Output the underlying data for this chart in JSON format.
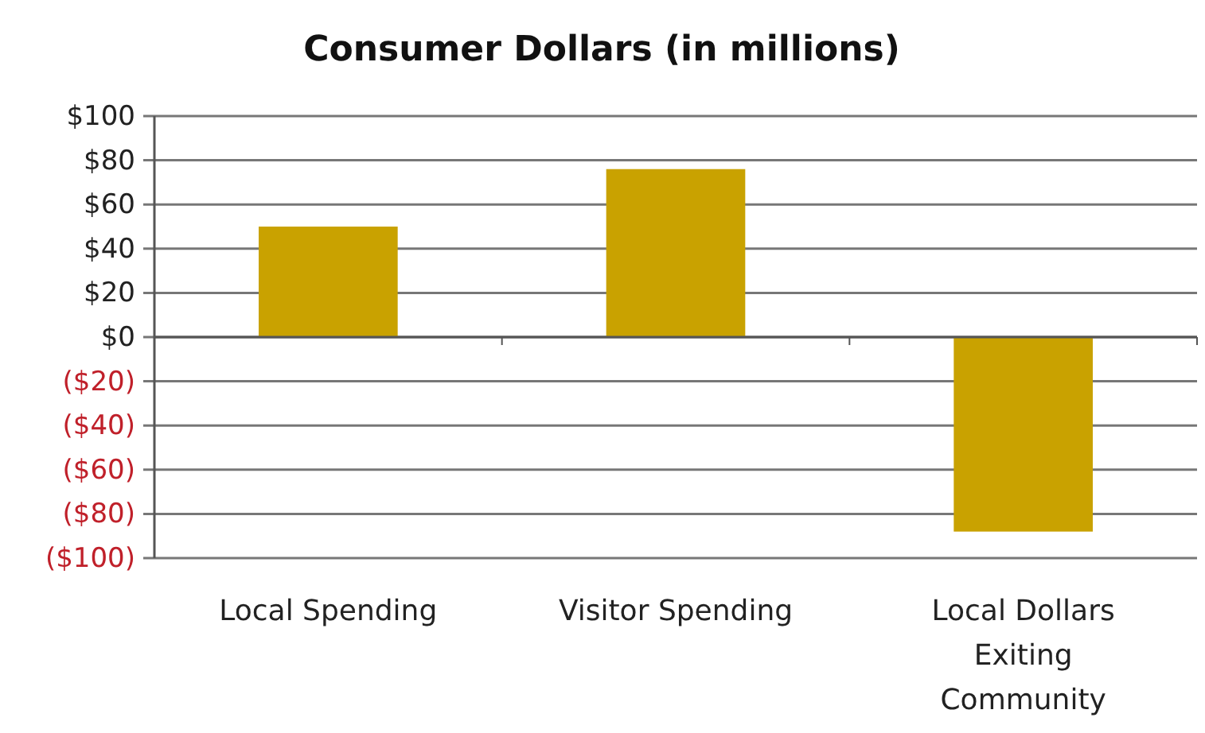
{
  "chart_data": {
    "type": "bar",
    "title": "Consumer Dollars (in millions)",
    "categories": [
      "Local Spending",
      "Visitor Spending",
      "Local Dollars Exiting Community"
    ],
    "values": [
      50,
      76,
      -88
    ],
    "color": "#c9a200",
    "ylim": [
      -100,
      100
    ],
    "yticks": [
      {
        "value": -100,
        "label": "($100)"
      },
      {
        "value": -80,
        "label": "($80)"
      },
      {
        "value": -60,
        "label": "($60)"
      },
      {
        "value": -40,
        "label": "($40)"
      },
      {
        "value": -20,
        "label": "($20)"
      },
      {
        "value": 0,
        "label": "$0"
      },
      {
        "value": 20,
        "label": "$20"
      },
      {
        "value": 40,
        "label": "$40"
      },
      {
        "value": 60,
        "label": "$60"
      },
      {
        "value": 80,
        "label": "$80"
      },
      {
        "value": 100,
        "label": "$100"
      }
    ],
    "grid": "y"
  }
}
